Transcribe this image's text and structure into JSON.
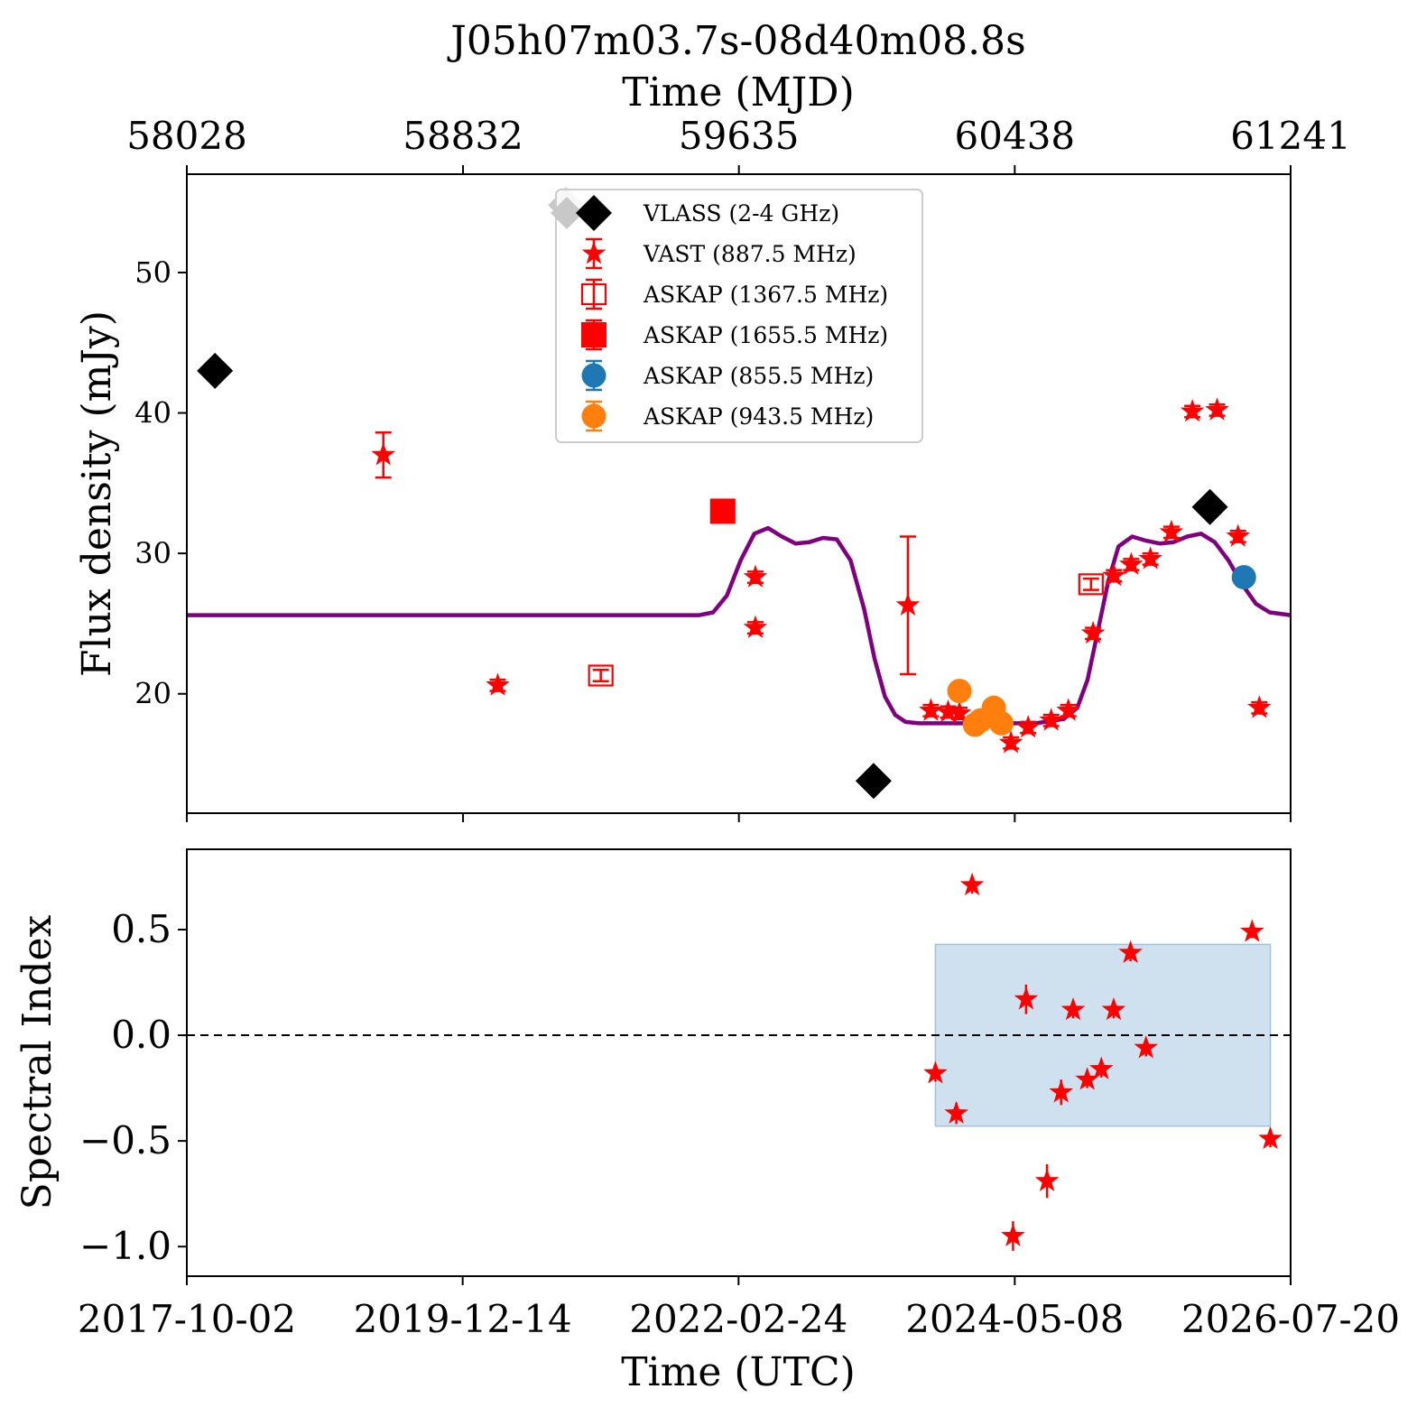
{
  "figure": {
    "title": "J05h07m03.7s-08d40m08.8s",
    "top_axis_label": "Time (MJD)",
    "bottom_axis_label": "Time (UTC)"
  },
  "colors": {
    "vlass": "#000000",
    "vlass_faded": "#c8c8c8",
    "vast": "#ff0000",
    "askap_1367": "#ff0000",
    "askap_1655": "#ff0000",
    "askap_855": "#1f77b4",
    "askap_943": "#ff7f0e",
    "model": "#800080",
    "band_fill": "#cfe0ee",
    "band_edge": "#9ec3e0"
  },
  "chart_data": [
    {
      "type": "scatter",
      "panel": "flux",
      "ylabel": "Flux density (mJy)",
      "x_unit": "MJD",
      "xlim": [
        58028,
        61241
      ],
      "ylim": [
        11.5,
        57
      ],
      "x_ticks_top": [
        58028,
        58832,
        59635,
        60438,
        61241
      ],
      "x_tick_labels_top": [
        "58028",
        "58832",
        "59635",
        "60438",
        "61241"
      ],
      "y_ticks": [
        20,
        30,
        40,
        50
      ],
      "y_tick_labels": [
        "20",
        "30",
        "40",
        "50"
      ],
      "grid": false,
      "legend": {
        "placement": "upper-center",
        "entries": [
          "VLASS (2-4 GHz)",
          "VAST (887.5 MHz)",
          "ASKAP (1367.5 MHz)",
          "ASKAP (1655.5 MHz)",
          "ASKAP (855.5 MHz)",
          "ASKAP (943.5 MHz)"
        ]
      },
      "series": [
        {
          "name": "VLASS (2-4 GHz)",
          "marker": "diamond",
          "x": [
            58110,
            59132,
            60027,
            61006
          ],
          "y": [
            43.0,
            54.8,
            13.8,
            33.3
          ],
          "faded": [
            false,
            true,
            false,
            false
          ]
        },
        {
          "name": "VAST (887.5 MHz)",
          "marker": "star",
          "x": [
            58600,
            58933,
            59683,
            59683,
            60127,
            60194,
            60244,
            60277,
            60427,
            60477,
            60544,
            60594,
            60666,
            60727,
            60777,
            60833,
            60894,
            60955,
            61027,
            61088
          ],
          "y": [
            37.0,
            20.6,
            28.3,
            24.7,
            26.3,
            18.8,
            18.7,
            18.6,
            16.5,
            17.6,
            18.1,
            18.8,
            24.3,
            28.4,
            29.2,
            29.6,
            31.5,
            40.1,
            40.2,
            31.2
          ],
          "yerr": [
            1.6,
            0.4,
            0.4,
            0.4,
            4.9,
            0.4,
            0.4,
            0.4,
            0.4,
            0.4,
            0.4,
            0.4,
            0.4,
            0.4,
            0.4,
            0.4,
            0.4,
            0.4,
            0.4,
            0.4
          ]
        },
        {
          "name": "VAST (887.5 MHz)",
          "marker": "star",
          "x": [
            61150
          ],
          "y": [
            19.0
          ],
          "yerr": [
            0.4
          ]
        },
        {
          "name": "ASKAP (1367.5 MHz)",
          "marker": "open-square",
          "x": [
            59233,
            60660
          ],
          "y": [
            21.3,
            27.8
          ],
          "yerr": [
            0.4,
            0.4
          ]
        },
        {
          "name": "ASKAP (1655.5 MHz)",
          "marker": "square",
          "x": [
            59588
          ],
          "y": [
            33.0
          ]
        },
        {
          "name": "ASKAP (855.5 MHz)",
          "marker": "circle",
          "x": [
            61105
          ],
          "y": [
            28.3
          ]
        },
        {
          "name": "ASKAP (943.5 MHz)",
          "marker": "circle",
          "x": [
            60277,
            60338,
            60322,
            60377,
            60399
          ],
          "y": [
            20.2,
            18.1,
            17.8,
            19.0,
            17.9
          ]
        },
        {
          "name": "",
          "type": "line",
          "x": [
            58028,
            59450,
            59520,
            59560,
            59600,
            59640,
            59680,
            59720,
            59760,
            59800,
            59840,
            59880,
            59920,
            59960,
            60000,
            60030,
            60060,
            60090,
            60120,
            60160,
            60200,
            60300,
            60400,
            60500,
            60580,
            60620,
            60650,
            60680,
            60710,
            60740,
            60780,
            60820,
            60860,
            60900,
            60940,
            60980,
            61020,
            61060,
            61100,
            61140,
            61180,
            61241
          ],
          "y": [
            25.6,
            25.6,
            25.6,
            25.8,
            27.0,
            29.5,
            31.4,
            31.8,
            31.2,
            30.7,
            30.8,
            31.1,
            31.0,
            29.5,
            26.0,
            22.5,
            19.8,
            18.5,
            18.0,
            17.9,
            17.9,
            17.9,
            17.9,
            17.9,
            18.2,
            19.0,
            21.0,
            24.5,
            28.0,
            30.5,
            31.2,
            30.9,
            30.7,
            30.8,
            31.2,
            31.4,
            30.8,
            29.5,
            27.8,
            26.4,
            25.8,
            25.6
          ]
        }
      ]
    },
    {
      "type": "scatter",
      "panel": "spectral-index",
      "ylabel": "Spectral Index",
      "x_unit": "UTC date",
      "xlim": [
        "2017-10-02",
        "2026-07-20"
      ],
      "ylim": [
        -1.14,
        0.88
      ],
      "x_ticks": [
        "2017-10-02",
        "2019-12-14",
        "2022-02-24",
        "2024-05-08",
        "2026-07-20"
      ],
      "y_ticks": [
        -1.0,
        -0.5,
        0.0,
        0.5
      ],
      "y_tick_labels": [
        "−1.0",
        "−0.5",
        "0.0",
        "0.5"
      ],
      "reference_line": 0.0,
      "band": {
        "x_start": "2023-09-20",
        "x_end": "2026-05-22",
        "y_low": -0.43,
        "y_high": 0.43
      },
      "series": [
        {
          "name": "",
          "marker": "star",
          "x": [
            "2023-09-20",
            "2023-11-20",
            "2024-01-05",
            "2024-05-03",
            "2024-06-10",
            "2024-08-10",
            "2024-09-20",
            "2024-10-25",
            "2024-12-05",
            "2025-01-15",
            "2025-02-20",
            "2025-04-10",
            "2025-05-25",
            "2026-03-30",
            "2026-05-22"
          ],
          "y": [
            -0.18,
            -0.37,
            0.71,
            -0.95,
            0.17,
            -0.69,
            -0.27,
            0.12,
            -0.21,
            -0.16,
            0.12,
            0.39,
            -0.06,
            0.49,
            -0.49
          ],
          "yerr": [
            0.04,
            0.05,
            0.04,
            0.07,
            0.07,
            0.08,
            0.06,
            0.04,
            0.04,
            0.04,
            0.04,
            0.04,
            0.04,
            0.03,
            0.04
          ]
        }
      ]
    }
  ]
}
